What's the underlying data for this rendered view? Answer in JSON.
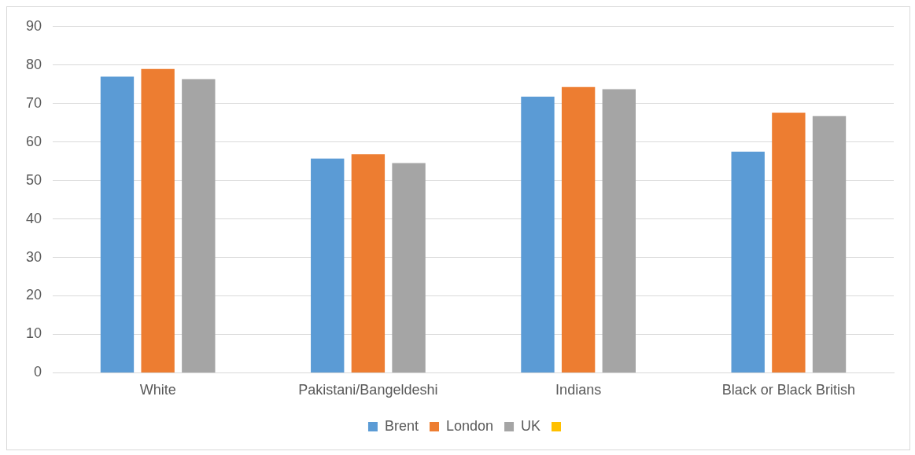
{
  "chart_data": {
    "type": "bar",
    "categories": [
      "White",
      "Pakistani/Bangeldeshi",
      "Indians",
      "Black or Black British"
    ],
    "series": [
      {
        "name": "Brent",
        "color": "#5b9bd5",
        "values": [
          77.0,
          55.7,
          71.8,
          57.5
        ]
      },
      {
        "name": "London",
        "color": "#ed7d31",
        "values": [
          79.0,
          56.8,
          74.3,
          67.6
        ]
      },
      {
        "name": "UK",
        "color": "#a5a5a5",
        "values": [
          76.3,
          54.5,
          73.7,
          66.7
        ]
      }
    ],
    "ylim": [
      0,
      90
    ],
    "yticks": [
      0,
      10,
      20,
      30,
      40,
      50,
      60,
      70,
      80,
      90
    ],
    "grid": "y",
    "legend": "bottom"
  }
}
